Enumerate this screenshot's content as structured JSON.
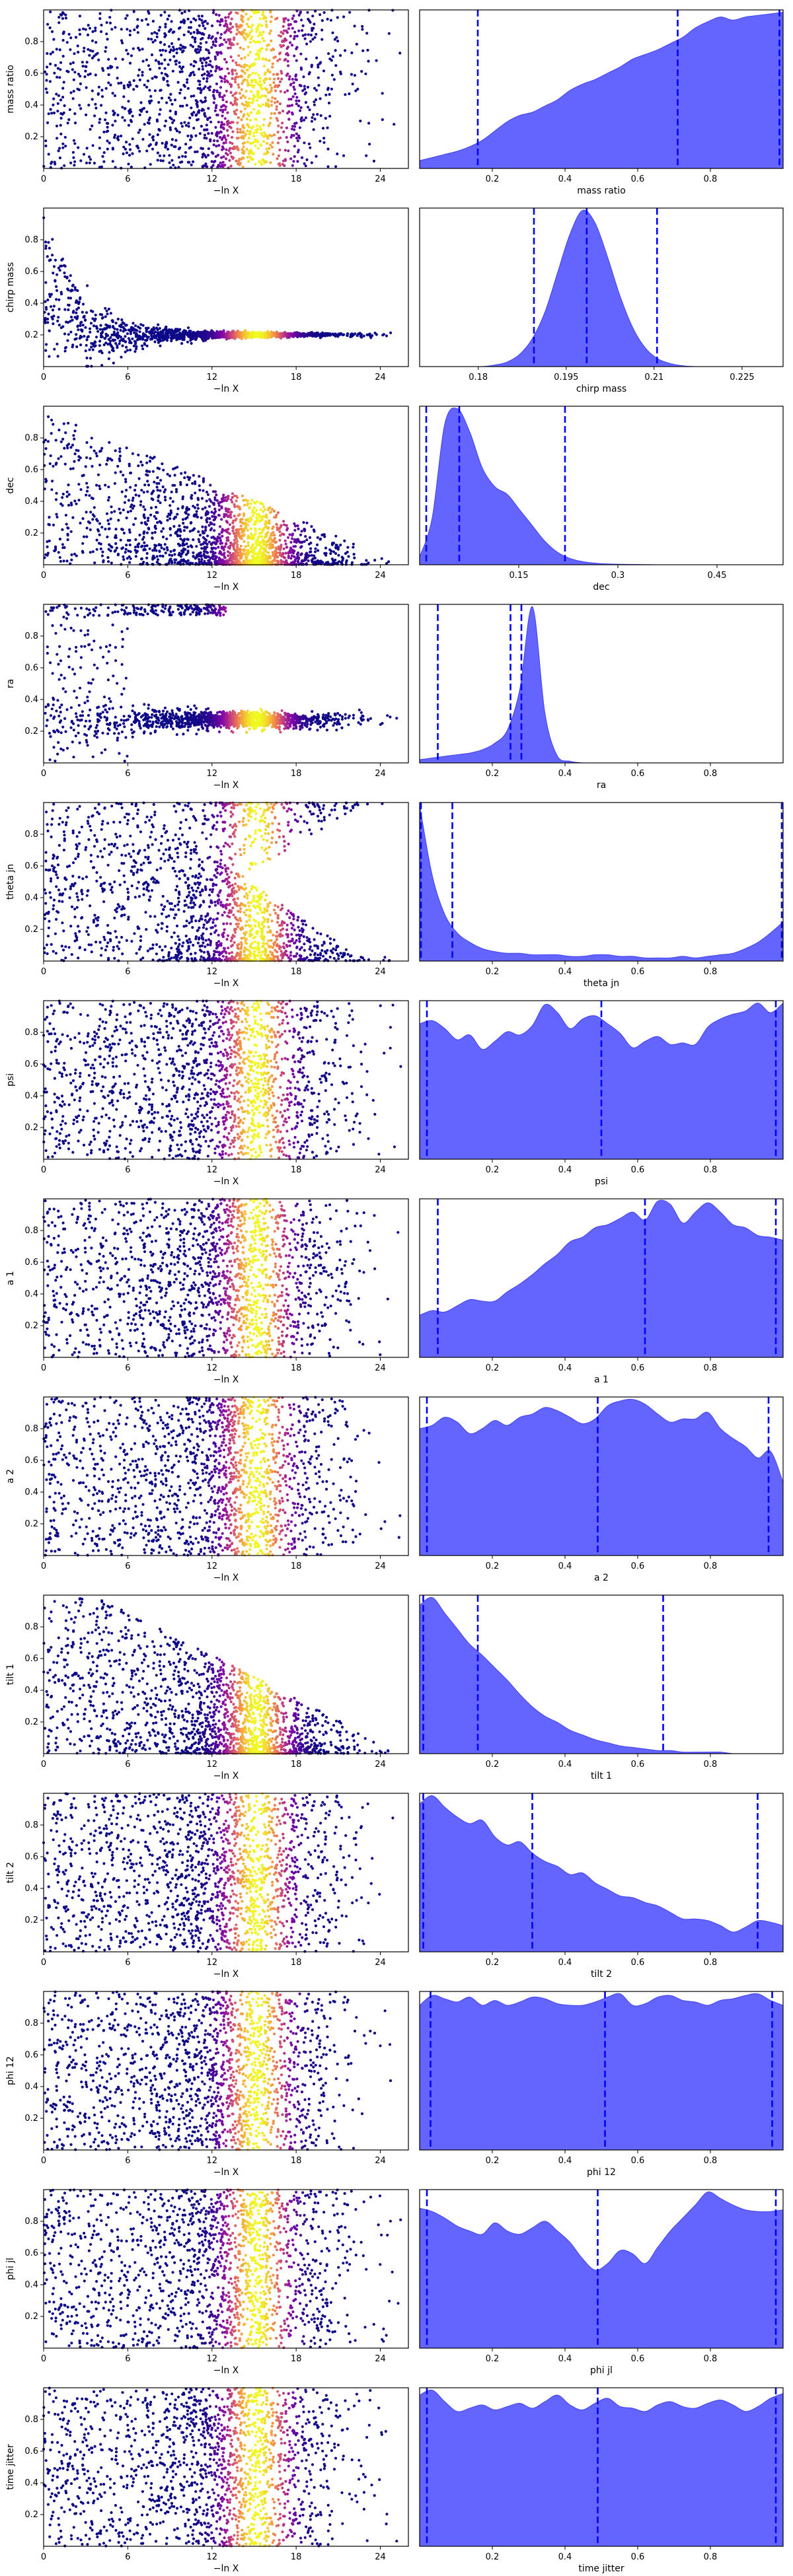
{
  "figure": {
    "colormap": "plasma",
    "scatter_point_color_low": "#0d0887",
    "scatter_point_color_high": "#f0f921",
    "kde_fill_color": "#6464ff",
    "quantile_line_color": "#0000ff"
  },
  "chart_data": [
    {
      "type": "scatter",
      "name": "mass ratio",
      "xlabel": "−ln X",
      "ylabel": "mass ratio",
      "xlim": [
        0,
        26
      ],
      "ylim": [
        0,
        1
      ],
      "xticks": [
        0,
        6,
        12,
        18,
        24
      ],
      "yticks": [
        0.2,
        0.4,
        0.6,
        0.8
      ],
      "pattern": "uniform",
      "lo": 0.0,
      "hi": 1.0,
      "grid": false
    },
    {
      "type": "area",
      "name": "mass ratio",
      "xlabel": "mass ratio",
      "xlim": [
        0,
        1
      ],
      "xticks": [
        0.2,
        0.4,
        0.6,
        0.8
      ],
      "quantiles": [
        0.16,
        0.71,
        0.99
      ],
      "density": [
        0.05,
        0.07,
        0.09,
        0.11,
        0.14,
        0.18,
        0.24,
        0.3,
        0.34,
        0.36,
        0.4,
        0.44,
        0.5,
        0.54,
        0.57,
        0.61,
        0.65,
        0.7,
        0.73,
        0.76,
        0.8,
        0.84,
        0.9,
        0.94,
        0.97,
        0.95,
        0.97,
        0.98,
        0.99,
        1.0
      ],
      "grid": false
    },
    {
      "type": "scatter",
      "name": "chirp mass",
      "xlabel": "−ln X",
      "ylabel": "chirp mass",
      "xlim": [
        0,
        26
      ],
      "ylim": [
        0,
        1
      ],
      "xticks": [
        0,
        6,
        12,
        18,
        24
      ],
      "yticks": [
        0.2,
        0.4,
        0.6,
        0.8
      ],
      "pattern": "funnel",
      "center": 0.2,
      "grid": false
    },
    {
      "type": "area",
      "name": "chirp mass",
      "xlabel": "chirp mass",
      "xlim": [
        0.17,
        0.232
      ],
      "xticks": [
        0.18,
        0.195,
        0.21,
        0.225
      ],
      "quantiles": [
        0.1895,
        0.1985,
        0.2105
      ],
      "density": [
        0,
        0,
        0,
        0,
        0,
        0,
        0.01,
        0.03,
        0.08,
        0.18,
        0.35,
        0.6,
        0.85,
        1.0,
        0.92,
        0.7,
        0.45,
        0.25,
        0.12,
        0.05,
        0.02,
        0.005,
        0,
        0,
        0,
        0,
        0,
        0,
        0,
        0
      ],
      "grid": false
    },
    {
      "type": "scatter",
      "name": "dec",
      "xlabel": "−ln X",
      "ylabel": "dec",
      "xlim": [
        0,
        26
      ],
      "ylim": [
        0,
        1
      ],
      "xticks": [
        0,
        6,
        12,
        18,
        24
      ],
      "yticks": [
        0.2,
        0.4,
        0.6,
        0.8
      ],
      "pattern": "wedge",
      "grid": false
    },
    {
      "type": "area",
      "name": "dec",
      "xlabel": "dec",
      "xlim": [
        0,
        0.55
      ],
      "xticks": [
        0.15,
        0.3,
        0.45
      ],
      "quantiles": [
        0.01,
        0.06,
        0.22
      ],
      "density": [
        0.05,
        0.3,
        0.9,
        1.0,
        0.85,
        0.62,
        0.5,
        0.45,
        0.35,
        0.25,
        0.15,
        0.08,
        0.04,
        0.02,
        0.01,
        0.005,
        0.003,
        0.002,
        0.001,
        0,
        0,
        0,
        0,
        0,
        0,
        0,
        0,
        0,
        0,
        0
      ],
      "grid": false
    },
    {
      "type": "scatter",
      "name": "ra",
      "xlabel": "−ln X",
      "ylabel": "ra",
      "xlim": [
        0,
        26
      ],
      "ylim": [
        0,
        1
      ],
      "xticks": [
        0,
        6,
        12,
        18,
        24
      ],
      "yticks": [
        0.2,
        0.4,
        0.6,
        0.8
      ],
      "pattern": "ra",
      "center": 0.27,
      "grid": false
    },
    {
      "type": "area",
      "name": "ra",
      "xlabel": "ra",
      "xlim": [
        0,
        1
      ],
      "xticks": [
        0.2,
        0.4,
        0.6,
        0.8
      ],
      "quantiles": [
        0.05,
        0.25,
        0.28
      ],
      "density": [
        0.02,
        0.03,
        0.04,
        0.05,
        0.06,
        0.08,
        0.12,
        0.2,
        0.45,
        0.95,
        0.3,
        0.04,
        0.01,
        0,
        0,
        0,
        0,
        0,
        0,
        0,
        0,
        0,
        0,
        0,
        0,
        0,
        0,
        0,
        0,
        0
      ],
      "grid": false
    },
    {
      "type": "scatter",
      "name": "theta jn",
      "xlabel": "−ln X",
      "ylabel": "theta jn",
      "xlim": [
        0,
        26
      ],
      "ylim": [
        0,
        1
      ],
      "xticks": [
        0,
        6,
        12,
        18,
        24
      ],
      "yticks": [
        0.2,
        0.4,
        0.6,
        0.8
      ],
      "pattern": "theta",
      "grid": false
    },
    {
      "type": "area",
      "name": "theta jn",
      "xlabel": "theta jn",
      "xlim": [
        0,
        1
      ],
      "xticks": [
        0.2,
        0.4,
        0.6,
        0.8
      ],
      "quantiles": [
        0.0,
        0.09,
        1.0
      ],
      "density": [
        1.0,
        0.55,
        0.3,
        0.18,
        0.12,
        0.08,
        0.06,
        0.05,
        0.05,
        0.04,
        0.04,
        0.04,
        0.03,
        0.03,
        0.04,
        0.04,
        0.03,
        0.03,
        0.02,
        0.02,
        0.02,
        0.03,
        0.02,
        0.03,
        0.04,
        0.05,
        0.08,
        0.12,
        0.18,
        0.25
      ],
      "grid": false
    },
    {
      "type": "scatter",
      "name": "psi",
      "xlabel": "−ln X",
      "ylabel": "psi",
      "xlim": [
        0,
        26
      ],
      "ylim": [
        0,
        1
      ],
      "xticks": [
        0,
        6,
        12,
        18,
        24
      ],
      "yticks": [
        0.2,
        0.4,
        0.6,
        0.8
      ],
      "pattern": "uniform",
      "lo": 0.0,
      "hi": 1.0,
      "grid": false
    },
    {
      "type": "area",
      "name": "psi",
      "xlabel": "psi",
      "xlim": [
        0,
        1
      ],
      "xticks": [
        0.2,
        0.4,
        0.6,
        0.8
      ],
      "quantiles": [
        0.02,
        0.5,
        0.98
      ],
      "density": [
        0.85,
        0.87,
        0.82,
        0.75,
        0.78,
        0.69,
        0.74,
        0.8,
        0.78,
        0.84,
        0.97,
        0.92,
        0.82,
        0.88,
        0.9,
        0.85,
        0.79,
        0.7,
        0.74,
        0.77,
        0.72,
        0.73,
        0.72,
        0.83,
        0.88,
        0.91,
        0.93,
        0.98,
        0.92,
        0.98
      ],
      "grid": false
    },
    {
      "type": "scatter",
      "name": "a 1",
      "xlabel": "−ln X",
      "ylabel": "a 1",
      "xlim": [
        0,
        26
      ],
      "ylim": [
        0,
        1
      ],
      "xticks": [
        0,
        6,
        12,
        18,
        24
      ],
      "yticks": [
        0.2,
        0.4,
        0.6,
        0.8
      ],
      "pattern": "uniform",
      "lo": 0.0,
      "hi": 1.0,
      "grid": false
    },
    {
      "type": "area",
      "name": "a 1",
      "xlabel": "a 1",
      "xlim": [
        0,
        1
      ],
      "xticks": [
        0.2,
        0.4,
        0.6,
        0.8
      ],
      "quantiles": [
        0.05,
        0.62,
        0.98
      ],
      "density": [
        0.27,
        0.3,
        0.29,
        0.33,
        0.37,
        0.36,
        0.36,
        0.42,
        0.47,
        0.53,
        0.6,
        0.66,
        0.74,
        0.77,
        0.83,
        0.85,
        0.89,
        0.93,
        0.88,
        1.0,
        0.98,
        0.86,
        0.93,
        0.99,
        0.93,
        0.85,
        0.83,
        0.78,
        0.77,
        0.75
      ],
      "grid": false
    },
    {
      "type": "scatter",
      "name": "a 2",
      "xlabel": "−ln X",
      "ylabel": "a 2",
      "xlim": [
        0,
        26
      ],
      "ylim": [
        0,
        1
      ],
      "xticks": [
        0,
        6,
        12,
        18,
        24
      ],
      "yticks": [
        0.2,
        0.4,
        0.6,
        0.8
      ],
      "pattern": "uniform",
      "lo": 0.0,
      "hi": 1.0,
      "grid": false
    },
    {
      "type": "area",
      "name": "a 2",
      "xlabel": "a 2",
      "xlim": [
        0,
        1
      ],
      "xticks": [
        0.2,
        0.4,
        0.6,
        0.8
      ],
      "quantiles": [
        0.02,
        0.49,
        0.96
      ],
      "density": [
        0.78,
        0.8,
        0.85,
        0.82,
        0.75,
        0.78,
        0.83,
        0.8,
        0.85,
        0.87,
        0.91,
        0.89,
        0.85,
        0.81,
        0.84,
        0.92,
        0.95,
        0.96,
        0.93,
        0.87,
        0.82,
        0.84,
        0.84,
        0.88,
        0.78,
        0.72,
        0.67,
        0.6,
        0.64,
        0.45
      ],
      "grid": false
    },
    {
      "type": "scatter",
      "name": "tilt 1",
      "xlabel": "−ln X",
      "ylabel": "tilt 1",
      "xlim": [
        0,
        26
      ],
      "ylim": [
        0,
        1
      ],
      "xticks": [
        0,
        6,
        12,
        18,
        24
      ],
      "yticks": [
        0.2,
        0.4,
        0.6,
        0.8
      ],
      "pattern": "wedge_tilt",
      "grid": false
    },
    {
      "type": "area",
      "name": "tilt 1",
      "xlabel": "tilt 1",
      "xlim": [
        0,
        1
      ],
      "xticks": [
        0.2,
        0.4,
        0.6,
        0.8
      ],
      "quantiles": [
        0.01,
        0.16,
        0.67
      ],
      "density": [
        0.95,
        1.0,
        0.9,
        0.8,
        0.7,
        0.63,
        0.55,
        0.47,
        0.38,
        0.3,
        0.24,
        0.2,
        0.15,
        0.12,
        0.09,
        0.07,
        0.05,
        0.04,
        0.03,
        0.02,
        0.02,
        0.01,
        0.01,
        0.01,
        0.01,
        0.0,
        0.0,
        0.0,
        0.0,
        0.0
      ],
      "grid": false
    },
    {
      "type": "scatter",
      "name": "tilt 2",
      "xlabel": "−ln X",
      "ylabel": "tilt 2",
      "xlim": [
        0,
        26
      ],
      "ylim": [
        0,
        1
      ],
      "xticks": [
        0,
        6,
        12,
        18,
        24
      ],
      "yticks": [
        0.2,
        0.4,
        0.6,
        0.8
      ],
      "pattern": "uniform",
      "lo": 0.0,
      "hi": 1.0,
      "grid": false
    },
    {
      "type": "area",
      "name": "tilt 2",
      "xlabel": "tilt 2",
      "xlim": [
        0,
        1
      ],
      "xticks": [
        0.2,
        0.4,
        0.6,
        0.8
      ],
      "quantiles": [
        0.01,
        0.31,
        0.93
      ],
      "density": [
        0.9,
        0.95,
        0.88,
        0.82,
        0.78,
        0.8,
        0.7,
        0.65,
        0.67,
        0.6,
        0.55,
        0.52,
        0.47,
        0.48,
        0.42,
        0.38,
        0.34,
        0.33,
        0.3,
        0.28,
        0.24,
        0.2,
        0.2,
        0.19,
        0.16,
        0.12,
        0.15,
        0.19,
        0.18,
        0.16
      ],
      "grid": false
    },
    {
      "type": "scatter",
      "name": "phi 12",
      "xlabel": "−ln X",
      "ylabel": "phi 12",
      "xlim": [
        0,
        26
      ],
      "ylim": [
        0,
        1
      ],
      "xticks": [
        0,
        6,
        12,
        18,
        24
      ],
      "yticks": [
        0.2,
        0.4,
        0.6,
        0.8
      ],
      "pattern": "uniform",
      "lo": 0.0,
      "hi": 1.0,
      "grid": false
    },
    {
      "type": "area",
      "name": "phi 12",
      "xlabel": "phi 12",
      "xlim": [
        0,
        1
      ],
      "xticks": [
        0.2,
        0.4,
        0.6,
        0.8
      ],
      "quantiles": [
        0.03,
        0.51,
        0.97
      ],
      "density": [
        0.88,
        0.94,
        0.92,
        0.9,
        0.93,
        0.88,
        0.91,
        0.88,
        0.9,
        0.93,
        0.92,
        0.89,
        0.88,
        0.88,
        0.9,
        0.93,
        0.95,
        0.88,
        0.89,
        0.93,
        0.94,
        0.91,
        0.9,
        0.88,
        0.91,
        0.92,
        0.94,
        0.95,
        0.91,
        0.88
      ],
      "grid": false
    },
    {
      "type": "scatter",
      "name": "phi jl",
      "xlabel": "−ln X",
      "ylabel": "phi jl",
      "xlim": [
        0,
        26
      ],
      "ylim": [
        0,
        1
      ],
      "xticks": [
        0,
        6,
        12,
        18,
        24
      ],
      "yticks": [
        0.2,
        0.4,
        0.6,
        0.8
      ],
      "pattern": "uniform",
      "lo": 0.0,
      "hi": 1.0,
      "grid": false
    },
    {
      "type": "area",
      "name": "phi jl",
      "xlabel": "phi jl",
      "xlim": [
        0,
        1
      ],
      "xticks": [
        0.2,
        0.4,
        0.6,
        0.8
      ],
      "quantiles": [
        0.02,
        0.49,
        0.98
      ],
      "density": [
        0.86,
        0.84,
        0.8,
        0.75,
        0.72,
        0.7,
        0.77,
        0.72,
        0.7,
        0.74,
        0.78,
        0.72,
        0.65,
        0.55,
        0.48,
        0.52,
        0.6,
        0.58,
        0.52,
        0.62,
        0.72,
        0.8,
        0.88,
        0.96,
        0.92,
        0.88,
        0.85,
        0.84,
        0.84,
        0.85
      ],
      "grid": false
    },
    {
      "type": "scatter",
      "name": "time jitter",
      "xlabel": "−ln X",
      "ylabel": "time jitter",
      "xlim": [
        0,
        26
      ],
      "ylim": [
        0,
        1
      ],
      "xticks": [
        0,
        6,
        12,
        18,
        24
      ],
      "yticks": [
        0.2,
        0.4,
        0.6,
        0.8
      ],
      "pattern": "uniform",
      "lo": 0.0,
      "hi": 1.0,
      "grid": false
    },
    {
      "type": "area",
      "name": "time jitter",
      "xlabel": "time jitter",
      "xlim": [
        0,
        1
      ],
      "xticks": [
        0.2,
        0.4,
        0.6,
        0.8
      ],
      "quantiles": [
        0.02,
        0.49,
        0.98
      ],
      "density": [
        0.92,
        0.95,
        0.88,
        0.82,
        0.84,
        0.86,
        0.83,
        0.85,
        0.87,
        0.84,
        0.88,
        0.92,
        0.86,
        0.83,
        0.87,
        0.9,
        0.85,
        0.84,
        0.82,
        0.86,
        0.88,
        0.85,
        0.84,
        0.87,
        0.89,
        0.86,
        0.82,
        0.85,
        0.9,
        0.93
      ],
      "grid": false
    }
  ]
}
